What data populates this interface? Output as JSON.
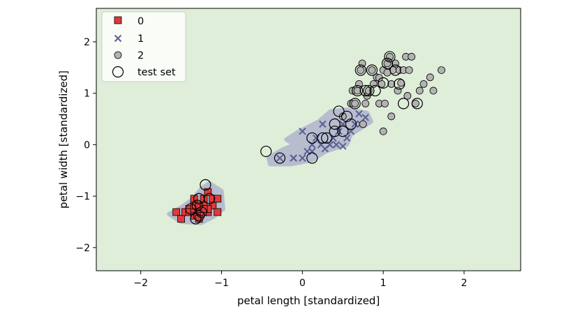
{
  "chart_data": {
    "type": "scatter",
    "xlabel": "petal length [standardized]",
    "ylabel": "petal width [standardized]",
    "xlim": [
      -2.55,
      2.7
    ],
    "ylim": [
      -2.45,
      2.65
    ],
    "xticks": [
      -2,
      -1,
      0,
      1,
      2
    ],
    "yticks": [
      -2,
      -1,
      0,
      1,
      2
    ],
    "xtick_labels": [
      "−2",
      "−1",
      "0",
      "1",
      "2"
    ],
    "ytick_labels": [
      "−2",
      "−1",
      "0",
      "1",
      "2"
    ],
    "grid": false,
    "legend_position": "top-left",
    "colors": {
      "background_region": "#deeed8",
      "class_0": "#e03a3a",
      "class_1": "#5b5f91",
      "class_2": "#b3b3b3",
      "decision_region": "#b7bccf",
      "test_ring": "#000000"
    },
    "legend": [
      {
        "label": "0",
        "marker": "square"
      },
      {
        "label": "1",
        "marker": "x"
      },
      {
        "label": "2",
        "marker": "circle"
      },
      {
        "label": "test set",
        "marker": "ring"
      }
    ],
    "series": [
      {
        "name": "0",
        "marker": "square",
        "points": [
          [
            -1.56,
            -1.31
          ],
          [
            -1.5,
            -1.44
          ],
          [
            -1.45,
            -1.31
          ],
          [
            -1.4,
            -1.25
          ],
          [
            -1.4,
            -1.31
          ],
          [
            -1.34,
            -1.31
          ],
          [
            -1.34,
            -1.18
          ],
          [
            -1.34,
            -1.05
          ],
          [
            -1.28,
            -1.31
          ],
          [
            -1.28,
            -1.25
          ],
          [
            -1.28,
            -1.18
          ],
          [
            -1.22,
            -1.31
          ],
          [
            -1.22,
            -1.18
          ],
          [
            -1.22,
            -1.05
          ],
          [
            -1.17,
            -1.31
          ],
          [
            -1.17,
            -0.92
          ],
          [
            -1.11,
            -1.18
          ],
          [
            -1.11,
            -1.05
          ],
          [
            -1.05,
            -1.31
          ],
          [
            -1.05,
            -1.05
          ],
          [
            -1.34,
            -1.38
          ],
          [
            -1.28,
            -1.44
          ],
          [
            -1.17,
            -1.25
          ],
          [
            -1.22,
            -1.25
          ]
        ]
      },
      {
        "name": "1",
        "marker": "x",
        "points": [
          [
            -0.28,
            -0.26
          ],
          [
            -0.11,
            -0.26
          ],
          [
            0.0,
            -0.26
          ],
          [
            0.06,
            -0.13
          ],
          [
            0.12,
            0.0
          ],
          [
            0.12,
            -0.13
          ],
          [
            0.17,
            0.13
          ],
          [
            0.23,
            0.0
          ],
          [
            0.25,
            0.4
          ],
          [
            0.28,
            -0.08
          ],
          [
            0.34,
            0.0
          ],
          [
            0.38,
            0.13
          ],
          [
            0.42,
            0.0
          ],
          [
            0.45,
            0.26
          ],
          [
            0.5,
            0.4
          ],
          [
            0.55,
            0.13
          ],
          [
            0.6,
            0.26
          ],
          [
            0.65,
            0.4
          ],
          [
            0.7,
            0.6
          ],
          [
            0.72,
            0.4
          ],
          [
            0.78,
            0.53
          ],
          [
            -0.11,
            -0.26
          ],
          [
            0.0,
            0.26
          ],
          [
            0.5,
            -0.03
          ]
        ]
      },
      {
        "name": "2",
        "marker": "circle",
        "points": [
          [
            0.5,
            0.55
          ],
          [
            0.6,
            0.8
          ],
          [
            0.62,
            1.05
          ],
          [
            0.65,
            0.8
          ],
          [
            0.68,
            1.05
          ],
          [
            0.7,
            1.18
          ],
          [
            0.72,
            1.45
          ],
          [
            0.74,
            1.58
          ],
          [
            0.75,
            0.4
          ],
          [
            0.78,
            0.8
          ],
          [
            0.8,
            0.95
          ],
          [
            0.82,
            1.05
          ],
          [
            0.86,
            1.45
          ],
          [
            0.88,
            1.18
          ],
          [
            0.92,
            1.31
          ],
          [
            0.95,
            0.8
          ],
          [
            0.98,
            1.18
          ],
          [
            1.0,
            1.45
          ],
          [
            1.02,
            0.8
          ],
          [
            1.05,
            1.58
          ],
          [
            1.08,
            1.71
          ],
          [
            1.1,
            1.18
          ],
          [
            1.12,
            1.45
          ],
          [
            1.15,
            1.58
          ],
          [
            1.18,
            1.05
          ],
          [
            1.2,
            1.45
          ],
          [
            1.22,
            1.2
          ],
          [
            1.25,
            1.45
          ],
          [
            1.28,
            1.71
          ],
          [
            1.32,
            1.45
          ],
          [
            1.35,
            1.71
          ],
          [
            1.4,
            0.8
          ],
          [
            1.45,
            1.05
          ],
          [
            1.5,
            1.18
          ],
          [
            1.58,
            1.31
          ],
          [
            1.62,
            1.05
          ],
          [
            1.72,
            1.45
          ],
          [
            1.0,
            0.26
          ],
          [
            1.1,
            0.55
          ],
          [
            1.3,
            0.95
          ],
          [
            0.95,
            1.3
          ],
          [
            1.05,
            1.4
          ]
        ]
      },
      {
        "name": "test set",
        "marker": "ring",
        "points": [
          [
            -1.28,
            -1.05
          ],
          [
            -1.2,
            -0.78
          ],
          [
            -1.15,
            -1.05
          ],
          [
            -1.3,
            -1.18
          ],
          [
            -1.28,
            -1.38
          ],
          [
            -1.32,
            -1.44
          ],
          [
            -1.25,
            -1.31
          ],
          [
            -1.38,
            -1.25
          ],
          [
            -0.45,
            -0.13
          ],
          [
            -0.28,
            -0.26
          ],
          [
            0.12,
            0.13
          ],
          [
            0.12,
            -0.26
          ],
          [
            0.25,
            0.13
          ],
          [
            0.3,
            0.13
          ],
          [
            0.4,
            0.4
          ],
          [
            0.4,
            0.26
          ],
          [
            0.45,
            0.65
          ],
          [
            0.55,
            0.55
          ],
          [
            0.6,
            0.4
          ],
          [
            0.65,
            0.8
          ],
          [
            0.68,
            1.05
          ],
          [
            0.72,
            1.45
          ],
          [
            0.78,
            1.05
          ],
          [
            0.82,
            1.05
          ],
          [
            0.86,
            1.45
          ],
          [
            0.9,
            1.05
          ],
          [
            1.08,
            1.71
          ],
          [
            1.15,
            1.45
          ],
          [
            1.2,
            1.18
          ],
          [
            1.25,
            0.8
          ],
          [
            1.42,
            0.8
          ],
          [
            1.05,
            1.58
          ],
          [
            1.0,
            1.2
          ],
          [
            0.5,
            0.26
          ]
        ]
      }
    ],
    "decision_regions": [
      {
        "class": "0",
        "polygon": [
          [
            -1.65,
            -1.35
          ],
          [
            -1.5,
            -1.22
          ],
          [
            -1.35,
            -1.05
          ],
          [
            -1.25,
            -0.85
          ],
          [
            -1.15,
            -0.75
          ],
          [
            -1.0,
            -0.9
          ],
          [
            -0.98,
            -1.25
          ],
          [
            -1.1,
            -1.4
          ],
          [
            -1.25,
            -1.52
          ],
          [
            -1.5,
            -1.5
          ]
        ]
      },
      {
        "class": "1",
        "polygon": [
          [
            -0.42,
            -0.25
          ],
          [
            -0.25,
            -0.1
          ],
          [
            -0.1,
            0.0
          ],
          [
            -0.2,
            0.1
          ],
          [
            -0.05,
            0.25
          ],
          [
            0.2,
            0.45
          ],
          [
            0.35,
            0.65
          ],
          [
            0.55,
            0.68
          ],
          [
            0.8,
            0.62
          ],
          [
            0.85,
            0.45
          ],
          [
            0.6,
            0.2
          ],
          [
            0.55,
            0.0
          ],
          [
            0.3,
            -0.12
          ],
          [
            0.12,
            -0.3
          ],
          [
            -0.15,
            -0.38
          ],
          [
            -0.4,
            -0.38
          ]
        ]
      }
    ]
  }
}
